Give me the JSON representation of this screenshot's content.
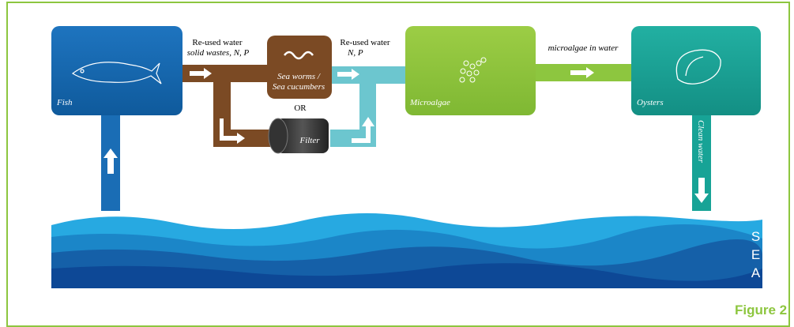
{
  "nodes": [
    {
      "label": "Fish"
    },
    {
      "label": "Sea worms /",
      "label2": "Sea cucumbers"
    },
    {
      "label": "Filter"
    },
    {
      "label": "Microalgae"
    },
    {
      "label": "Oysters"
    }
  ],
  "edges": [
    {
      "label": "Re-used water",
      "label2": "solid wastes, N, P"
    },
    {
      "label": "Re-used water",
      "label2": "N, P"
    },
    {
      "label": "microalgae in water"
    },
    {
      "label": "Clean water"
    }
  ],
  "or_label": "OR",
  "sea_label": "SEA",
  "caption": "Figure 2"
}
